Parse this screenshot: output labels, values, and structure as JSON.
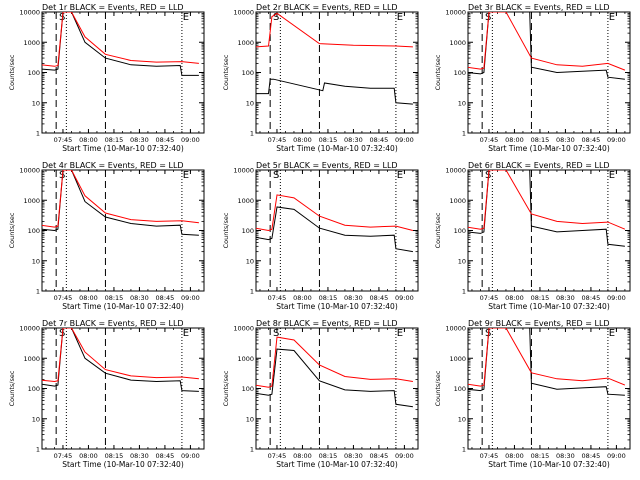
{
  "page": {
    "background": "#ffffff"
  },
  "colors": {
    "events": "#000000",
    "lld": "#ff0000",
    "axis": "#000000"
  },
  "common": {
    "xlabel": "Start Time (10-Mar-10 07:32:40)",
    "ylabel": "Counts/sec",
    "xtick_labels": [
      "07:45",
      "08:00",
      "08:15",
      "08:30",
      "08:45",
      "09:00"
    ],
    "ytick_labels": [
      "1",
      "10",
      "100",
      "1000",
      "10000"
    ],
    "markers": [
      "S",
      "E"
    ]
  },
  "chart_data": [
    {
      "type": "line",
      "title": "Det 1r BLACK = Events, RED = LLD",
      "xlabel": "Start Time (10-Mar-10 07:32:40)",
      "ylabel": "Counts/sec",
      "xlim": [
        "07:32:40",
        "09:08:00"
      ],
      "ylim": [
        1,
        10000
      ],
      "yscale": "log",
      "grid": false,
      "dashed_lines": [
        "07:41",
        "08:10"
      ],
      "dotted_lines": [
        "07:47",
        "08:55"
      ],
      "series": [
        {
          "name": "Events",
          "color": "#000000",
          "x": [
            "07:32",
            "07:40",
            "07:42",
            "07:45",
            "07:50",
            "07:58",
            "08:10",
            "08:25",
            "08:40",
            "08:54",
            "08:55",
            "09:05"
          ],
          "values": [
            130,
            120,
            130,
            10000,
            10000,
            1000,
            300,
            180,
            160,
            170,
            80,
            80
          ]
        },
        {
          "name": "LLD",
          "color": "#ff0000",
          "x": [
            "07:32",
            "07:40",
            "07:42",
            "07:45",
            "07:50",
            "07:58",
            "08:10",
            "08:25",
            "08:40",
            "08:55",
            "09:05"
          ],
          "values": [
            180,
            160,
            170,
            10000,
            10000,
            1500,
            400,
            250,
            220,
            230,
            200
          ]
        }
      ]
    },
    {
      "type": "line",
      "title": "Det 2r BLACK = Events, RED = LLD",
      "xlabel": "Start Time (10-Mar-10 07:32:40)",
      "ylabel": "Counts/sec",
      "xlim": [
        "07:32:40",
        "09:08:00"
      ],
      "ylim": [
        1,
        10000
      ],
      "yscale": "log",
      "grid": false,
      "dashed_lines": [
        "07:41",
        "08:10"
      ],
      "dotted_lines": [
        "07:47",
        "08:55"
      ],
      "series": [
        {
          "name": "Events",
          "color": "#000000",
          "x": [
            "07:32",
            "07:40",
            "07:41",
            "07:43",
            "08:12",
            "08:13",
            "08:25",
            "08:40",
            "08:54",
            "08:55",
            "09:05"
          ],
          "values": [
            20,
            20,
            60,
            60,
            25,
            45,
            35,
            30,
            30,
            10,
            9
          ]
        },
        {
          "name": "LLD",
          "color": "#ff0000",
          "x": [
            "07:32",
            "07:40",
            "07:42",
            "07:45",
            "08:10",
            "08:30",
            "08:55",
            "09:05"
          ],
          "values": [
            700,
            750,
            7000,
            9000,
            900,
            800,
            750,
            700
          ]
        }
      ]
    },
    {
      "type": "line",
      "title": "Det 3r BLACK = Events, RED = LLD",
      "xlabel": "Start Time (10-Mar-10 07:32:40)",
      "ylabel": "Counts/sec",
      "xlim": [
        "07:32:40",
        "09:08:00"
      ],
      "ylim": [
        1,
        10000
      ],
      "yscale": "log",
      "grid": false,
      "dashed_lines": [
        "07:41",
        "08:10"
      ],
      "dotted_lines": [
        "07:47",
        "08:55"
      ],
      "series": [
        {
          "name": "Events",
          "color": "#000000",
          "x": [
            "07:32",
            "07:40",
            "07:42",
            "07:45",
            "07:50",
            "08:09",
            "08:10",
            "08:25",
            "08:40",
            "08:54",
            "08:55",
            "09:05"
          ],
          "values": [
            100,
            90,
            100,
            10000,
            10000,
            10000,
            150,
            100,
            110,
            120,
            70,
            60
          ]
        },
        {
          "name": "LLD",
          "color": "#ff0000",
          "x": [
            "07:32",
            "07:40",
            "07:42",
            "07:45",
            "07:55",
            "08:10",
            "08:25",
            "08:40",
            "08:55",
            "09:05"
          ],
          "values": [
            150,
            130,
            140,
            10000,
            10000,
            300,
            180,
            160,
            200,
            120
          ]
        }
      ]
    },
    {
      "type": "line",
      "title": "Det 4r BLACK = Events, RED = LLD",
      "xlabel": "Start Time (10-Mar-10 07:32:40)",
      "ylabel": "Counts/sec",
      "xlim": [
        "07:32:40",
        "09:08:00"
      ],
      "ylim": [
        1,
        10000
      ],
      "yscale": "log",
      "grid": false,
      "dashed_lines": [
        "07:41",
        "08:10"
      ],
      "dotted_lines": [
        "07:47",
        "08:55"
      ],
      "series": [
        {
          "name": "Events",
          "color": "#000000",
          "x": [
            "07:32",
            "07:40",
            "07:42",
            "07:45",
            "07:50",
            "07:58",
            "08:10",
            "08:25",
            "08:40",
            "08:54",
            "08:55",
            "09:05"
          ],
          "values": [
            110,
            100,
            110,
            10000,
            10000,
            900,
            280,
            170,
            140,
            150,
            75,
            70
          ]
        },
        {
          "name": "LLD",
          "color": "#ff0000",
          "x": [
            "07:32",
            "07:40",
            "07:42",
            "07:45",
            "07:50",
            "07:58",
            "08:10",
            "08:25",
            "08:40",
            "08:55",
            "09:05"
          ],
          "values": [
            150,
            130,
            140,
            10000,
            10000,
            1400,
            380,
            230,
            200,
            210,
            180
          ]
        }
      ]
    },
    {
      "type": "line",
      "title": "Det 5r BLACK = Events, RED = LLD",
      "xlabel": "Start Time (10-Mar-10 07:32:40)",
      "ylabel": "Counts/sec",
      "xlim": [
        "07:32:40",
        "09:08:00"
      ],
      "ylim": [
        1,
        10000
      ],
      "yscale": "log",
      "grid": false,
      "dashed_lines": [
        "07:41",
        "08:10"
      ],
      "dotted_lines": [
        "07:47",
        "08:55"
      ],
      "series": [
        {
          "name": "Events",
          "color": "#000000",
          "x": [
            "07:32",
            "07:40",
            "07:42",
            "07:45",
            "07:55",
            "08:10",
            "08:25",
            "08:40",
            "08:54",
            "08:55",
            "09:05"
          ],
          "values": [
            60,
            50,
            55,
            600,
            500,
            120,
            70,
            65,
            70,
            25,
            20
          ]
        },
        {
          "name": "LLD",
          "color": "#ff0000",
          "x": [
            "07:32",
            "07:40",
            "07:42",
            "07:45",
            "07:55",
            "08:10",
            "08:25",
            "08:40",
            "08:55",
            "09:05"
          ],
          "values": [
            120,
            100,
            110,
            1500,
            1200,
            300,
            150,
            130,
            140,
            100
          ]
        }
      ]
    },
    {
      "type": "line",
      "title": "Det 6r BLACK = Events, RED = LLD",
      "xlabel": "Start Time (10-Mar-10 07:32:40)",
      "ylabel": "Counts/sec",
      "xlim": [
        "07:32:40",
        "09:08:00"
      ],
      "ylim": [
        1,
        10000
      ],
      "yscale": "log",
      "grid": false,
      "dashed_lines": [
        "07:41",
        "08:10"
      ],
      "dotted_lines": [
        "07:47",
        "08:55"
      ],
      "series": [
        {
          "name": "Events",
          "color": "#000000",
          "x": [
            "07:32",
            "07:40",
            "07:42",
            "07:45",
            "07:55",
            "08:09",
            "08:10",
            "08:25",
            "08:40",
            "08:54",
            "08:55",
            "09:05"
          ],
          "values": [
            90,
            80,
            90,
            10000,
            10000,
            10000,
            140,
            90,
            100,
            110,
            35,
            30
          ]
        },
        {
          "name": "LLD",
          "color": "#ff0000",
          "x": [
            "07:32",
            "07:40",
            "07:42",
            "07:45",
            "07:55",
            "08:10",
            "08:25",
            "08:40",
            "08:55",
            "09:05"
          ],
          "values": [
            130,
            110,
            120,
            10000,
            10000,
            350,
            200,
            170,
            190,
            110
          ]
        }
      ]
    },
    {
      "type": "line",
      "title": "Det 7r BLACK = Events, RED = LLD",
      "xlabel": "Start Time (10-Mar-10 07:32:40)",
      "ylabel": "Counts/sec",
      "xlim": [
        "07:32:40",
        "09:08:00"
      ],
      "ylim": [
        1,
        10000
      ],
      "yscale": "log",
      "grid": false,
      "dashed_lines": [
        "07:41",
        "08:10"
      ],
      "dotted_lines": [
        "07:47",
        "08:55"
      ],
      "series": [
        {
          "name": "Events",
          "color": "#000000",
          "x": [
            "07:32",
            "07:40",
            "07:42",
            "07:45",
            "07:50",
            "07:58",
            "08:10",
            "08:25",
            "08:40",
            "08:54",
            "08:55",
            "09:05"
          ],
          "values": [
            140,
            120,
            130,
            10000,
            10000,
            1000,
            320,
            190,
            170,
            180,
            85,
            80
          ]
        },
        {
          "name": "LLD",
          "color": "#ff0000",
          "x": [
            "07:32",
            "07:40",
            "07:42",
            "07:45",
            "07:50",
            "07:58",
            "08:10",
            "08:25",
            "08:40",
            "08:55",
            "09:05"
          ],
          "values": [
            190,
            170,
            180,
            10000,
            10000,
            1600,
            420,
            260,
            230,
            240,
            210
          ]
        }
      ]
    },
    {
      "type": "line",
      "title": "Det 8r BLACK = Events, RED = LLD",
      "xlabel": "Start Time (10-Mar-10 07:32:40)",
      "ylabel": "Counts/sec",
      "xlim": [
        "07:32:40",
        "09:08:00"
      ],
      "ylim": [
        1,
        10000
      ],
      "yscale": "log",
      "grid": false,
      "dashed_lines": [
        "07:41",
        "08:10"
      ],
      "dotted_lines": [
        "07:47",
        "08:55"
      ],
      "series": [
        {
          "name": "Events",
          "color": "#000000",
          "x": [
            "07:32",
            "07:40",
            "07:42",
            "07:45",
            "07:55",
            "08:10",
            "08:25",
            "08:40",
            "08:54",
            "08:55",
            "09:05"
          ],
          "values": [
            70,
            60,
            65,
            2000,
            1800,
            180,
            90,
            80,
            85,
            30,
            25
          ]
        },
        {
          "name": "LLD",
          "color": "#ff0000",
          "x": [
            "07:32",
            "07:40",
            "07:42",
            "07:45",
            "07:55",
            "08:10",
            "08:25",
            "08:40",
            "08:55",
            "09:05"
          ],
          "values": [
            130,
            110,
            120,
            5000,
            4000,
            600,
            250,
            200,
            210,
            170
          ]
        }
      ]
    },
    {
      "type": "line",
      "title": "Det 9r BLACK = Events, RED = LLD",
      "xlabel": "Start Time (10-Mar-10 07:32:40)",
      "ylabel": "Counts/sec",
      "xlim": [
        "07:32:40",
        "09:08:00"
      ],
      "ylim": [
        1,
        10000
      ],
      "yscale": "log",
      "grid": false,
      "dashed_lines": [
        "07:41",
        "08:10"
      ],
      "dotted_lines": [
        "07:47",
        "08:55"
      ],
      "series": [
        {
          "name": "Events",
          "color": "#000000",
          "x": [
            "07:32",
            "07:40",
            "07:42",
            "07:45",
            "07:55",
            "08:09",
            "08:10",
            "08:25",
            "08:40",
            "08:54",
            "08:55",
            "09:05"
          ],
          "values": [
            95,
            85,
            95,
            10000,
            10000,
            10000,
            150,
            95,
            105,
            115,
            65,
            60
          ]
        },
        {
          "name": "LLD",
          "color": "#ff0000",
          "x": [
            "07:32",
            "07:40",
            "07:42",
            "07:45",
            "07:55",
            "08:10",
            "08:25",
            "08:40",
            "08:55",
            "09:05"
          ],
          "values": [
            140,
            120,
            130,
            10000,
            10000,
            330,
            210,
            180,
            220,
            130
          ]
        }
      ]
    }
  ]
}
